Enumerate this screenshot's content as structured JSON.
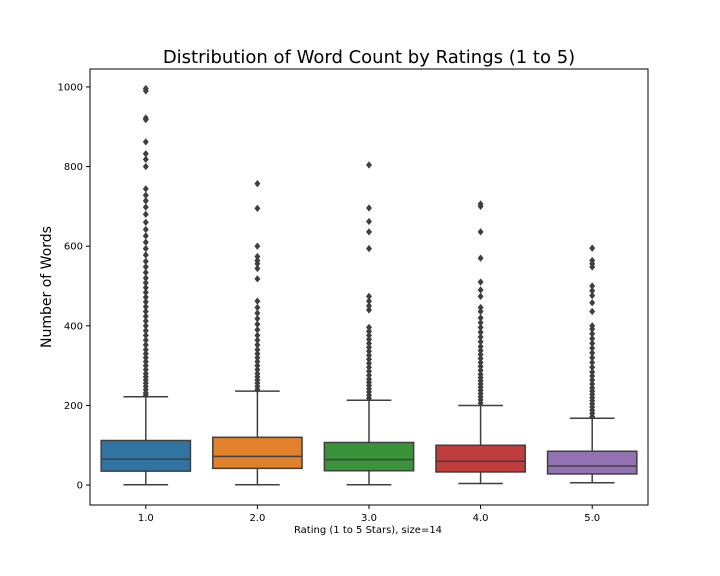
{
  "chart_data": {
    "type": "box",
    "title": "Distribution of Word Count by Ratings (1 to 5)",
    "xlabel": "Rating (1 to 5 Stars), size=14",
    "ylabel": "Number of Words",
    "ylim": [
      -50,
      1045
    ],
    "y_ticks": [
      0,
      200,
      400,
      600,
      800,
      1000
    ],
    "categories": [
      "1.0",
      "2.0",
      "3.0",
      "4.0",
      "5.0"
    ],
    "colors": [
      "#3274a1",
      "#e1812c",
      "#3a923a",
      "#c03d3e",
      "#9372b2"
    ],
    "boxes": [
      {
        "name": "1.0",
        "whisker_low": 1,
        "q1": 35,
        "median": 65,
        "q3": 112,
        "whisker_high": 222,
        "outliers": [
          226,
          232,
          240,
          248,
          256,
          264,
          272,
          280,
          290,
          300,
          310,
          320,
          330,
          340,
          352,
          364,
          376,
          388,
          400,
          412,
          424,
          436,
          448,
          460,
          472,
          484,
          496,
          508,
          520,
          534,
          548,
          562,
          578,
          594,
          610,
          626,
          642,
          660,
          680,
          698,
          714,
          728,
          744,
          800,
          818,
          832,
          862,
          918,
          922,
          990,
          996
        ]
      },
      {
        "name": "2.0",
        "whisker_low": 1,
        "q1": 42,
        "median": 72,
        "q3": 120,
        "whisker_high": 236,
        "outliers": [
          240,
          248,
          256,
          264,
          272,
          280,
          290,
          300,
          310,
          320,
          330,
          340,
          352,
          364,
          376,
          390,
          404,
          418,
          432,
          446,
          462,
          518,
          544,
          556,
          564,
          574,
          600,
          695,
          757
        ]
      },
      {
        "name": "3.0",
        "whisker_low": 1,
        "q1": 36,
        "median": 64,
        "q3": 107,
        "whisker_high": 213,
        "outliers": [
          218,
          226,
          234,
          242,
          250,
          258,
          266,
          276,
          286,
          296,
          306,
          316,
          326,
          336,
          346,
          356,
          366,
          376,
          386,
          396,
          440,
          450,
          462,
          474,
          594,
          636,
          662,
          696,
          804
        ]
      },
      {
        "name": "4.0",
        "whisker_low": 4,
        "q1": 33,
        "median": 60,
        "q3": 100,
        "whisker_high": 200,
        "outliers": [
          206,
          214,
          222,
          230,
          238,
          246,
          254,
          262,
          270,
          278,
          288,
          298,
          308,
          318,
          328,
          338,
          348,
          360,
          372,
          384,
          396,
          408,
          420,
          436,
          446,
          474,
          490,
          510,
          570,
          636,
          700,
          706
        ]
      },
      {
        "name": "5.0",
        "whisker_low": 6,
        "q1": 28,
        "median": 48,
        "q3": 85,
        "whisker_high": 168,
        "outliers": [
          172,
          180,
          188,
          196,
          204,
          212,
          220,
          228,
          236,
          244,
          254,
          264,
          274,
          284,
          296,
          308,
          320,
          332,
          344,
          356,
          368,
          380,
          392,
          400,
          436,
          458,
          476,
          488,
          500,
          548,
          556,
          564,
          595
        ]
      }
    ]
  }
}
